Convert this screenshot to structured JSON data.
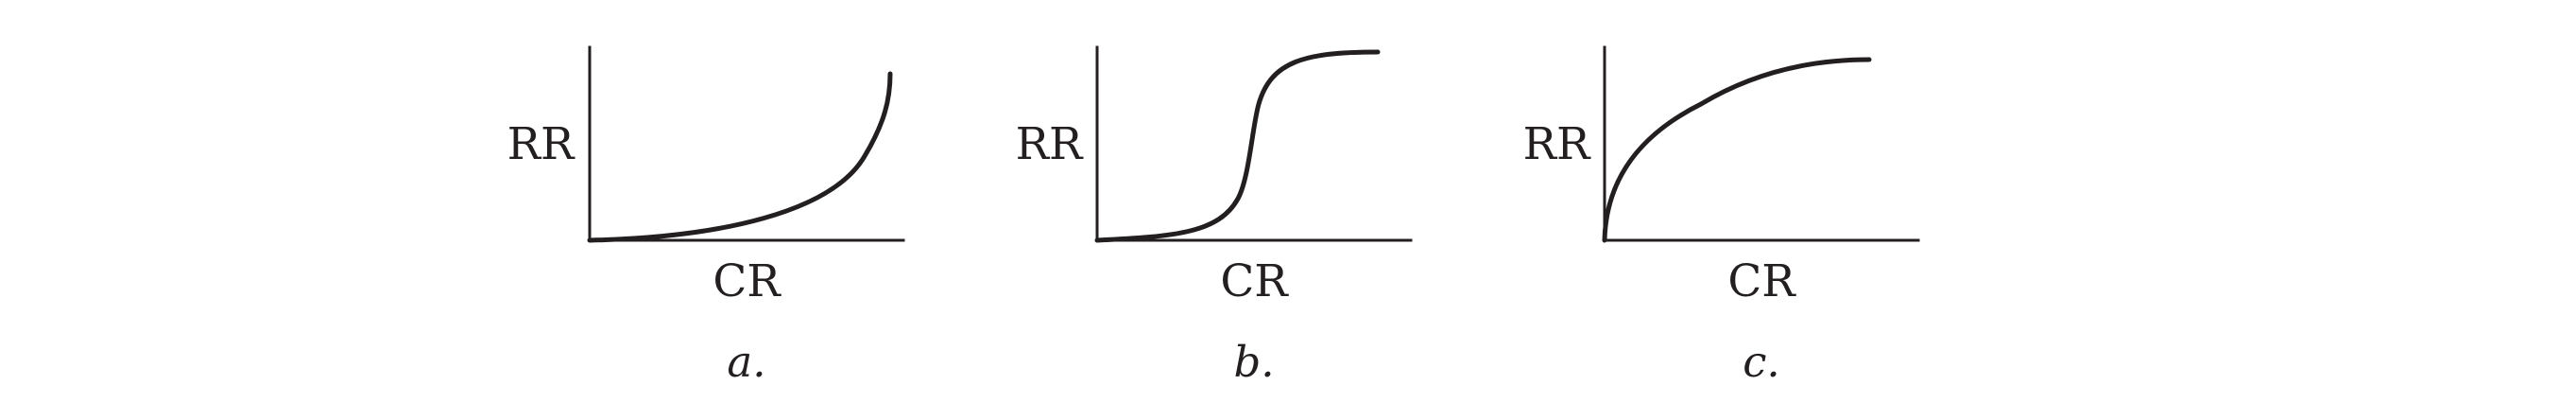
{
  "panels": [
    {
      "id": "a",
      "label": "a.",
      "ylabel": "RR",
      "xlabel": "CR",
      "curve": "accelerating"
    },
    {
      "id": "b",
      "label": "b.",
      "ylabel": "RR",
      "xlabel": "CR",
      "curve": "sigmoidal"
    },
    {
      "id": "c",
      "label": "c.",
      "ylabel": "RR",
      "xlabel": "CR",
      "curve": "decelerating"
    }
  ]
}
